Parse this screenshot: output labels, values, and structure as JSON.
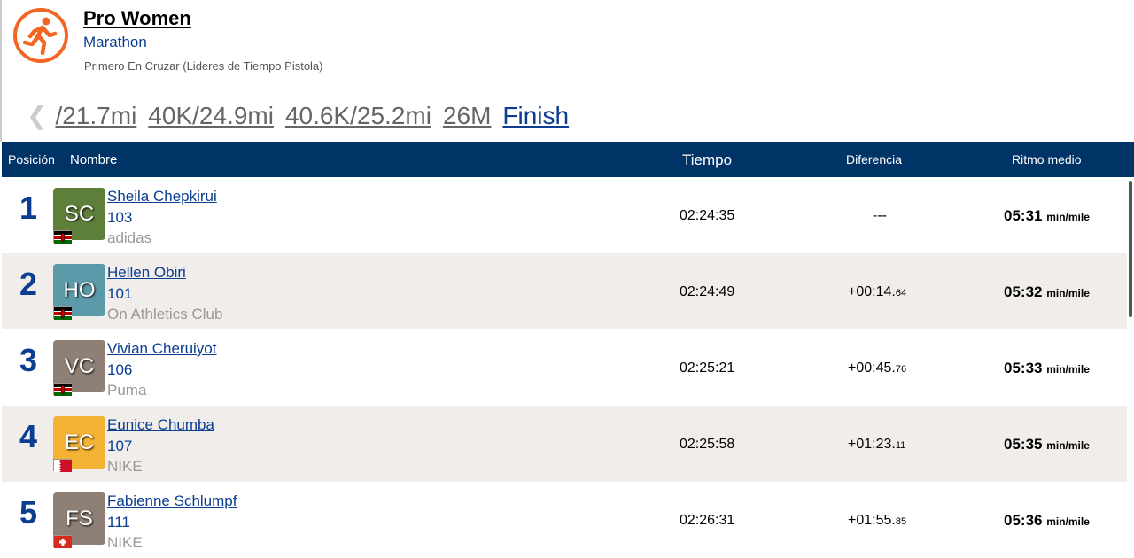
{
  "header": {
    "title": "Pro Women",
    "subtitle": "Marathon",
    "description": "Primero En Cruzar (Lideres de Tiempo Pistola)",
    "logo_icon": "runner-icon",
    "accent": "#f26522"
  },
  "splits": [
    "/21.7mi",
    "40K/24.9mi",
    "40.6K/25.2mi",
    "26M",
    "Finish"
  ],
  "columns": {
    "position": "Posición",
    "name": "Nombre",
    "time": "Tiempo",
    "diff": "Diferencia",
    "pace": "Ritmo medio"
  },
  "pace_unit": "min/mile",
  "rows": [
    {
      "pos": "1",
      "initials": "SC",
      "color": "#5e7f3a",
      "flag": "kenya",
      "name": "Sheila Chepkirui",
      "bib": "103",
      "team": "adidas",
      "time": "02:24:35",
      "diff": "---",
      "diff_ms": "",
      "pace": "05:31"
    },
    {
      "pos": "2",
      "initials": "HO",
      "color": "#5b9aa8",
      "flag": "kenya",
      "name": "Hellen Obiri",
      "bib": "101",
      "team": "On Athletics Club",
      "time": "02:24:49",
      "diff": "+00:14.",
      "diff_ms": "64",
      "pace": "05:32"
    },
    {
      "pos": "3",
      "initials": "VC",
      "color": "#8e8075",
      "flag": "kenya",
      "name": "Vivian Cheruiyot",
      "bib": "106",
      "team": "Puma",
      "time": "02:25:21",
      "diff": "+00:45.",
      "diff_ms": "76",
      "pace": "05:33"
    },
    {
      "pos": "4",
      "initials": "EC",
      "color": "#f5b335",
      "flag": "bahrain",
      "name": "Eunice Chumba",
      "bib": "107",
      "team": "NIKE",
      "time": "02:25:58",
      "diff": "+01:23.",
      "diff_ms": "11",
      "pace": "05:35"
    },
    {
      "pos": "5",
      "initials": "FS",
      "color": "#8e8075",
      "flag": "switzerland",
      "name": "Fabienne Schlumpf",
      "bib": "111",
      "team": "NIKE",
      "time": "02:26:31",
      "diff": "+01:55.",
      "diff_ms": "85",
      "pace": "05:36"
    }
  ]
}
